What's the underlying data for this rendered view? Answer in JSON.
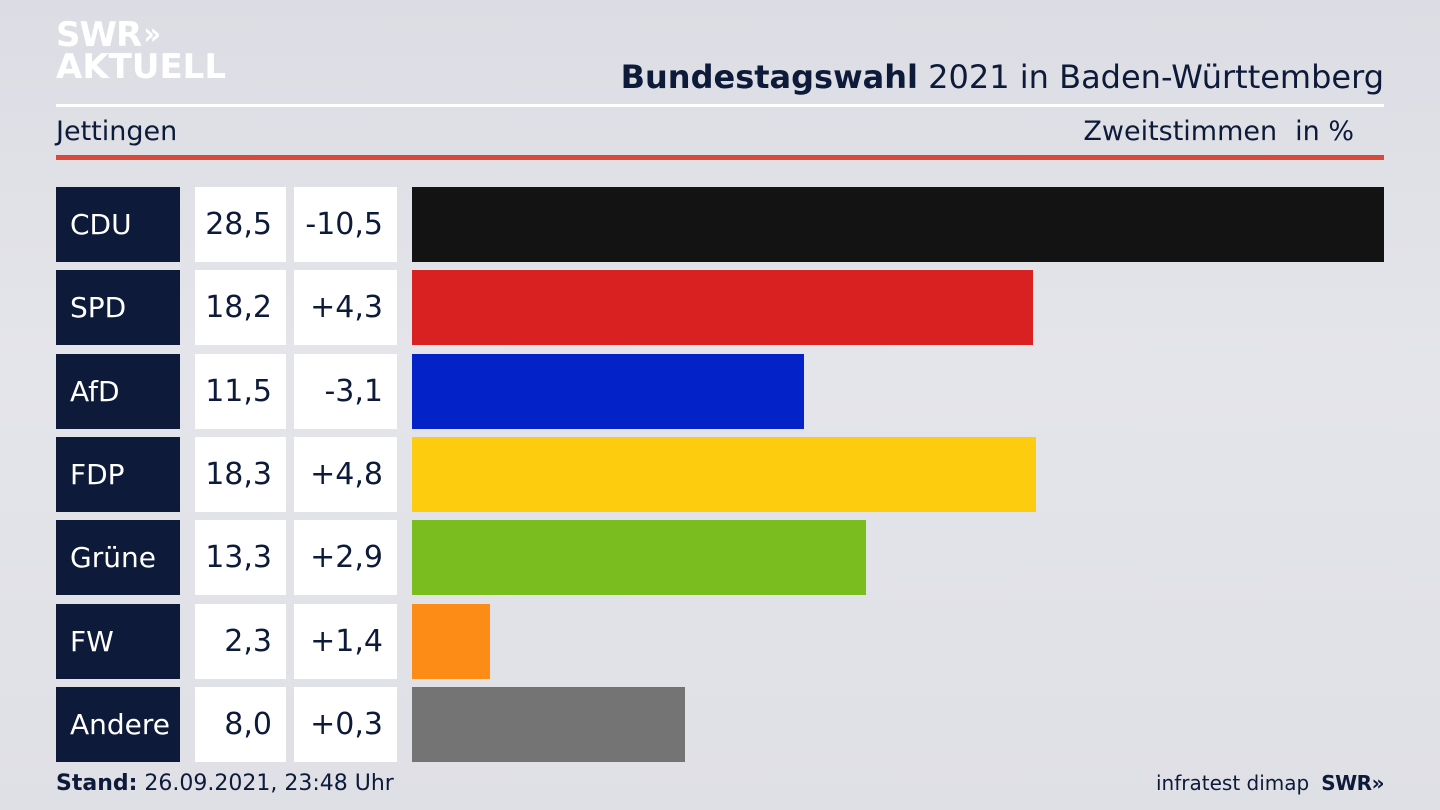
{
  "brand": {
    "logo_line1": "SWR",
    "logo_chevrons": "»",
    "logo_line2": "AKTUELL",
    "footer_logo": "SWR»"
  },
  "header": {
    "title_bold": "Bundestagswahl",
    "title_rest": "2021 in Baden-Württemberg",
    "location": "Jettingen",
    "measure": "Zweitstimmen",
    "unit": "in %"
  },
  "footer": {
    "stand_label": "Stand:",
    "stand_value": "26.09.2021, 23:48 Uhr",
    "source": "infratest dimap"
  },
  "colors": {
    "navy": "#0d1a3a",
    "accent_rule": "#d94a3d"
  },
  "chart_data": {
    "type": "bar",
    "orientation": "horizontal",
    "categories": [
      "CDU",
      "SPD",
      "AfD",
      "FDP",
      "Grüne",
      "FW",
      "Andere"
    ],
    "values": [
      28.5,
      18.2,
      11.5,
      18.3,
      13.3,
      2.3,
      8.0
    ],
    "value_labels": [
      "28,5",
      "18,2",
      "11,5",
      "18,3",
      "13,3",
      "2,3",
      "8,0"
    ],
    "change_labels": [
      "-10,5",
      "+4,3",
      "-3,1",
      "+4,8",
      "+2,9",
      "+1,4",
      "+0,3"
    ],
    "change_values": [
      -10.5,
      4.3,
      -3.1,
      4.8,
      2.9,
      1.4,
      0.3
    ],
    "bar_colors": [
      "#131313",
      "#d92121",
      "#0323c8",
      "#fdcc0e",
      "#79be1e",
      "#fd8c16",
      "#747474"
    ],
    "xlim": [
      0,
      28.5
    ],
    "grid": false,
    "legend": "none"
  }
}
